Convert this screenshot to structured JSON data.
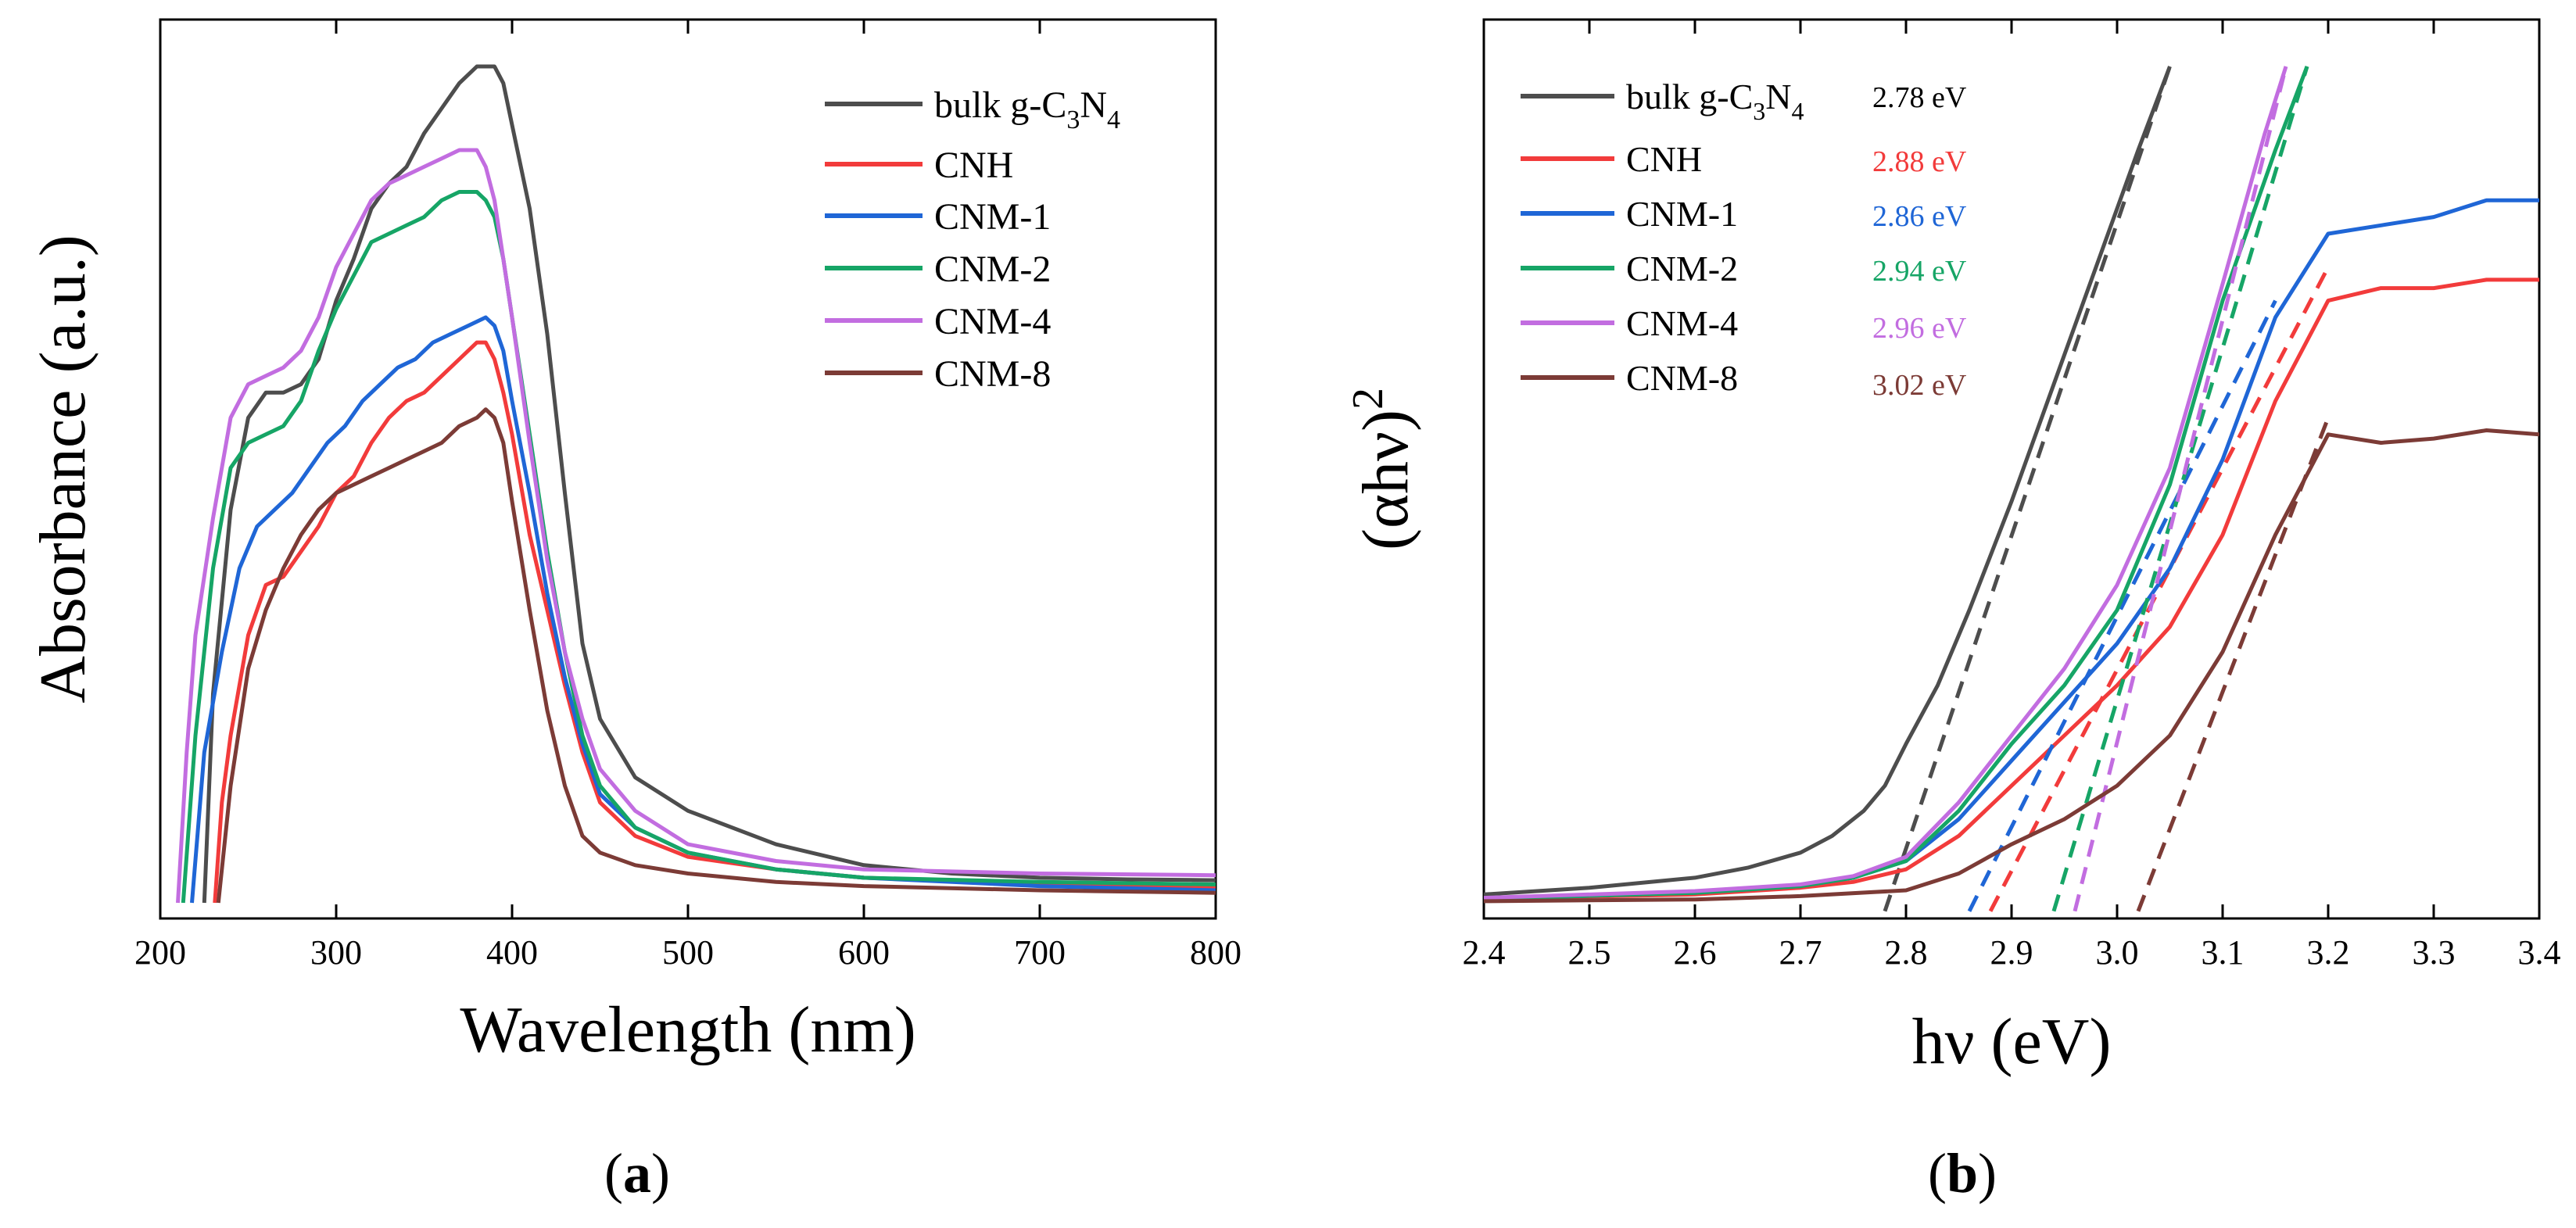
{
  "colors": {
    "bulk": "#4d4d4d",
    "CNH": "#f23b3b",
    "CNM-1": "#1f66d6",
    "CNM-2": "#16a566",
    "CNM-4": "#c26de0",
    "CNM-8": "#7c3b36",
    "axis": "#000000"
  },
  "chart_data": [
    {
      "panel": "a",
      "type": "line",
      "caption": "a",
      "xlabel": "Wavelength (nm)",
      "ylabel": "Absorbance (a.u.)",
      "xlim": [
        200,
        800
      ],
      "ylim": [
        0,
        1.0
      ],
      "xticks": [
        "200",
        "300",
        "400",
        "500",
        "600",
        "700",
        "800"
      ],
      "yticks_shown": false,
      "legend_position": "top-right",
      "series": [
        {
          "name": "bulk g-C3N4",
          "label_main": "bulk g-C",
          "sub1": "3",
          "mid": "N",
          "sub2": "4",
          "color_key": "bulk",
          "x": [
            225,
            230,
            240,
            250,
            260,
            270,
            280,
            290,
            300,
            310,
            320,
            330,
            340,
            350,
            360,
            370,
            380,
            390,
            395,
            400,
            410,
            420,
            430,
            440,
            450,
            470,
            500,
            550,
            600,
            650,
            700,
            750,
            800
          ],
          "y": [
            0.0,
            0.25,
            0.47,
            0.58,
            0.61,
            0.61,
            0.62,
            0.65,
            0.72,
            0.77,
            0.83,
            0.86,
            0.88,
            0.92,
            0.95,
            0.98,
            1.0,
            1.0,
            0.98,
            0.93,
            0.83,
            0.68,
            0.49,
            0.31,
            0.22,
            0.15,
            0.11,
            0.07,
            0.045,
            0.035,
            0.03,
            0.028,
            0.027
          ]
        },
        {
          "name": "CNH",
          "color_key": "CNH",
          "x": [
            231,
            235,
            240,
            250,
            260,
            270,
            280,
            290,
            300,
            310,
            320,
            330,
            340,
            350,
            360,
            370,
            380,
            385,
            390,
            395,
            400,
            410,
            420,
            430,
            440,
            450,
            470,
            500,
            550,
            600,
            700,
            800
          ],
          "y": [
            0.0,
            0.12,
            0.2,
            0.32,
            0.38,
            0.39,
            0.42,
            0.45,
            0.49,
            0.51,
            0.55,
            0.58,
            0.6,
            0.61,
            0.63,
            0.65,
            0.67,
            0.67,
            0.65,
            0.61,
            0.56,
            0.44,
            0.35,
            0.26,
            0.18,
            0.12,
            0.08,
            0.055,
            0.04,
            0.03,
            0.022,
            0.018
          ]
        },
        {
          "name": "CNM-1",
          "color_key": "CNM-1",
          "x": [
            218,
            225,
            235,
            245,
            255,
            265,
            275,
            285,
            295,
            305,
            315,
            325,
            335,
            345,
            355,
            365,
            375,
            385,
            390,
            395,
            400,
            410,
            420,
            430,
            440,
            450,
            470,
            500,
            550,
            600,
            700,
            800
          ],
          "y": [
            0.0,
            0.18,
            0.3,
            0.4,
            0.45,
            0.47,
            0.49,
            0.52,
            0.55,
            0.57,
            0.6,
            0.62,
            0.64,
            0.65,
            0.67,
            0.68,
            0.69,
            0.7,
            0.69,
            0.66,
            0.6,
            0.49,
            0.37,
            0.27,
            0.19,
            0.13,
            0.09,
            0.06,
            0.04,
            0.03,
            0.02,
            0.015
          ]
        },
        {
          "name": "CNM-2",
          "color_key": "CNM-2",
          "x": [
            213,
            220,
            230,
            240,
            250,
            260,
            270,
            280,
            290,
            300,
            310,
            320,
            330,
            340,
            350,
            360,
            370,
            380,
            385,
            390,
            395,
            400,
            410,
            420,
            430,
            440,
            450,
            470,
            500,
            550,
            600,
            700,
            800
          ],
          "y": [
            0.0,
            0.2,
            0.4,
            0.52,
            0.55,
            0.56,
            0.57,
            0.6,
            0.66,
            0.71,
            0.75,
            0.79,
            0.8,
            0.81,
            0.82,
            0.84,
            0.85,
            0.85,
            0.84,
            0.82,
            0.77,
            0.7,
            0.56,
            0.42,
            0.3,
            0.2,
            0.14,
            0.09,
            0.06,
            0.04,
            0.03,
            0.025,
            0.022
          ]
        },
        {
          "name": "CNM-4",
          "color_key": "CNM-4",
          "x": [
            210,
            215,
            220,
            230,
            240,
            250,
            260,
            270,
            280,
            290,
            300,
            310,
            320,
            330,
            340,
            350,
            360,
            370,
            380,
            385,
            390,
            395,
            400,
            410,
            420,
            430,
            440,
            450,
            470,
            500,
            550,
            600,
            700,
            800
          ],
          "y": [
            0.0,
            0.18,
            0.32,
            0.46,
            0.58,
            0.62,
            0.63,
            0.64,
            0.66,
            0.7,
            0.76,
            0.8,
            0.84,
            0.86,
            0.87,
            0.88,
            0.89,
            0.9,
            0.9,
            0.88,
            0.84,
            0.77,
            0.7,
            0.55,
            0.41,
            0.3,
            0.22,
            0.16,
            0.11,
            0.07,
            0.05,
            0.04,
            0.035,
            0.033
          ]
        },
        {
          "name": "CNM-8",
          "color_key": "CNM-8",
          "x": [
            233,
            240,
            250,
            260,
            270,
            280,
            290,
            300,
            310,
            320,
            330,
            340,
            350,
            360,
            370,
            380,
            385,
            390,
            395,
            400,
            410,
            420,
            430,
            440,
            450,
            470,
            500,
            550,
            600,
            700,
            800
          ],
          "y": [
            0.0,
            0.14,
            0.28,
            0.35,
            0.4,
            0.44,
            0.47,
            0.49,
            0.5,
            0.51,
            0.52,
            0.53,
            0.54,
            0.55,
            0.57,
            0.58,
            0.59,
            0.58,
            0.55,
            0.48,
            0.35,
            0.23,
            0.14,
            0.08,
            0.06,
            0.045,
            0.035,
            0.025,
            0.02,
            0.015,
            0.012
          ]
        }
      ]
    },
    {
      "panel": "b",
      "type": "line",
      "caption": "b",
      "xlabel": "hν (eV)",
      "ylabel": "(αhν)",
      "ylabel_sup": "2",
      "xlim": [
        2.4,
        3.4
      ],
      "ylim": [
        0,
        1.0
      ],
      "xticks": [
        "2.4",
        "2.5",
        "2.6",
        "2.7",
        "2.8",
        "2.9",
        "3.0",
        "3.1",
        "3.2",
        "3.3",
        "3.4"
      ],
      "yticks_shown": false,
      "legend_position": "top-left",
      "band_gaps": [
        {
          "name": "bulk g-C3N4",
          "gap": "2.78 eV",
          "color_key": "bulk"
        },
        {
          "name": "CNH",
          "gap": "2.88 eV",
          "color_key": "CNH"
        },
        {
          "name": "CNM-1",
          "gap": "2.86 eV",
          "color_key": "CNM-1"
        },
        {
          "name": "CNM-2",
          "gap": "2.94 eV",
          "color_key": "CNM-2"
        },
        {
          "name": "CNM-4",
          "gap": "2.96 eV",
          "color_key": "CNM-4"
        },
        {
          "name": "CNM-8",
          "gap": "3.02 eV",
          "color_key": "CNM-8"
        }
      ],
      "series": [
        {
          "name": "bulk g-C3N4",
          "color_key": "bulk",
          "x": [
            2.4,
            2.5,
            2.6,
            2.65,
            2.7,
            2.73,
            2.76,
            2.78,
            2.8,
            2.83,
            2.86,
            2.9,
            2.94,
            2.98,
            3.02,
            3.05
          ],
          "y": [
            0.01,
            0.018,
            0.03,
            0.042,
            0.06,
            0.08,
            0.11,
            0.14,
            0.19,
            0.26,
            0.35,
            0.48,
            0.62,
            0.76,
            0.9,
            1.0
          ],
          "fit_x": [
            2.78,
            3.05
          ],
          "fit_y": [
            -0.01,
            1.0
          ]
        },
        {
          "name": "CNH",
          "color_key": "CNH",
          "x": [
            2.4,
            2.6,
            2.7,
            2.75,
            2.8,
            2.85,
            2.9,
            2.95,
            3.0,
            3.05,
            3.1,
            3.15,
            3.2,
            3.25,
            3.3,
            3.35,
            3.4
          ],
          "y": [
            0.005,
            0.01,
            0.018,
            0.025,
            0.04,
            0.08,
            0.14,
            0.2,
            0.26,
            0.33,
            0.44,
            0.6,
            0.72,
            0.735,
            0.735,
            0.745,
            0.745
          ],
          "fit_x": [
            2.88,
            3.2
          ],
          "fit_y": [
            -0.01,
            0.76
          ]
        },
        {
          "name": "CNM-1",
          "color_key": "CNM-1",
          "x": [
            2.4,
            2.6,
            2.7,
            2.75,
            2.8,
            2.85,
            2.9,
            2.95,
            3.0,
            3.05,
            3.1,
            3.15,
            3.2,
            3.25,
            3.3,
            3.35,
            3.4
          ],
          "y": [
            0.005,
            0.012,
            0.02,
            0.03,
            0.05,
            0.1,
            0.17,
            0.24,
            0.31,
            0.4,
            0.53,
            0.7,
            0.8,
            0.81,
            0.82,
            0.84,
            0.84
          ],
          "fit_x": [
            2.86,
            3.15
          ],
          "fit_y": [
            -0.01,
            0.72
          ]
        },
        {
          "name": "CNM-2",
          "color_key": "CNM-2",
          "x": [
            2.4,
            2.6,
            2.7,
            2.75,
            2.8,
            2.85,
            2.9,
            2.95,
            3.0,
            3.05,
            3.1,
            3.15,
            3.18
          ],
          "y": [
            0.005,
            0.012,
            0.02,
            0.03,
            0.05,
            0.11,
            0.19,
            0.26,
            0.35,
            0.5,
            0.72,
            0.9,
            1.0
          ],
          "fit_x": [
            2.94,
            3.18
          ],
          "fit_y": [
            -0.01,
            1.0
          ]
        },
        {
          "name": "CNM-4",
          "color_key": "CNM-4",
          "x": [
            2.4,
            2.6,
            2.7,
            2.75,
            2.8,
            2.85,
            2.9,
            2.95,
            3.0,
            3.05,
            3.1,
            3.14,
            3.16
          ],
          "y": [
            0.006,
            0.014,
            0.022,
            0.032,
            0.055,
            0.12,
            0.2,
            0.28,
            0.38,
            0.52,
            0.74,
            0.92,
            1.0
          ],
          "fit_x": [
            2.96,
            3.16
          ],
          "fit_y": [
            -0.01,
            1.0
          ]
        },
        {
          "name": "CNM-8",
          "color_key": "CNM-8",
          "x": [
            2.4,
            2.6,
            2.7,
            2.8,
            2.85,
            2.9,
            2.95,
            3.0,
            3.05,
            3.1,
            3.15,
            3.2,
            3.25,
            3.3,
            3.35,
            3.4
          ],
          "y": [
            0.002,
            0.004,
            0.008,
            0.015,
            0.035,
            0.07,
            0.1,
            0.14,
            0.2,
            0.3,
            0.44,
            0.56,
            0.55,
            0.555,
            0.565,
            0.56
          ],
          "fit_x": [
            3.02,
            3.2
          ],
          "fit_y": [
            -0.01,
            0.58
          ]
        }
      ]
    }
  ]
}
